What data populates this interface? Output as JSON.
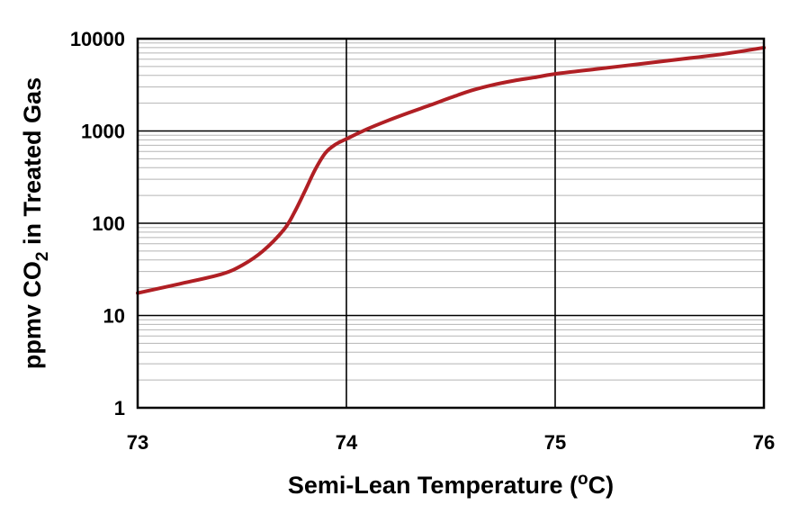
{
  "chart_data": {
    "type": "line",
    "title": "",
    "xlabel": "Semi-Lean Temperature (°C)",
    "xlabel_parts": {
      "pre": "Semi-Lean Temperature (",
      "sup": "o",
      "post": "C)"
    },
    "ylabel": "ppmv CO2 in Treated Gas",
    "ylabel_parts": {
      "pre": "ppmv CO",
      "sub": "2",
      "post": " in Treated Gas"
    },
    "xlim": [
      73,
      76
    ],
    "ylim": [
      1,
      10000
    ],
    "y_scale": "log",
    "x_ticks": [
      "73",
      "74",
      "75",
      "76"
    ],
    "y_ticks": [
      "1",
      "10",
      "100",
      "1000",
      "10000"
    ],
    "grid": {
      "major": true,
      "minor_y": true
    },
    "line_color": "#b01f24",
    "series": [
      {
        "name": "",
        "points": [
          [
            73.0,
            17.5
          ],
          [
            73.2,
            22
          ],
          [
            73.4,
            28
          ],
          [
            73.5,
            35
          ],
          [
            73.6,
            50
          ],
          [
            73.7,
            85
          ],
          [
            73.75,
            130
          ],
          [
            73.8,
            220
          ],
          [
            73.85,
            380
          ],
          [
            73.9,
            580
          ],
          [
            73.95,
            720
          ],
          [
            74.0,
            820
          ],
          [
            74.1,
            1050
          ],
          [
            74.2,
            1300
          ],
          [
            74.3,
            1580
          ],
          [
            74.4,
            1900
          ],
          [
            74.5,
            2300
          ],
          [
            74.6,
            2750
          ],
          [
            74.7,
            3150
          ],
          [
            74.8,
            3500
          ],
          [
            74.9,
            3800
          ],
          [
            75.0,
            4150
          ],
          [
            75.2,
            4700
          ],
          [
            75.4,
            5300
          ],
          [
            75.6,
            6000
          ],
          [
            75.8,
            6800
          ],
          [
            76.0,
            8000
          ]
        ]
      }
    ]
  }
}
